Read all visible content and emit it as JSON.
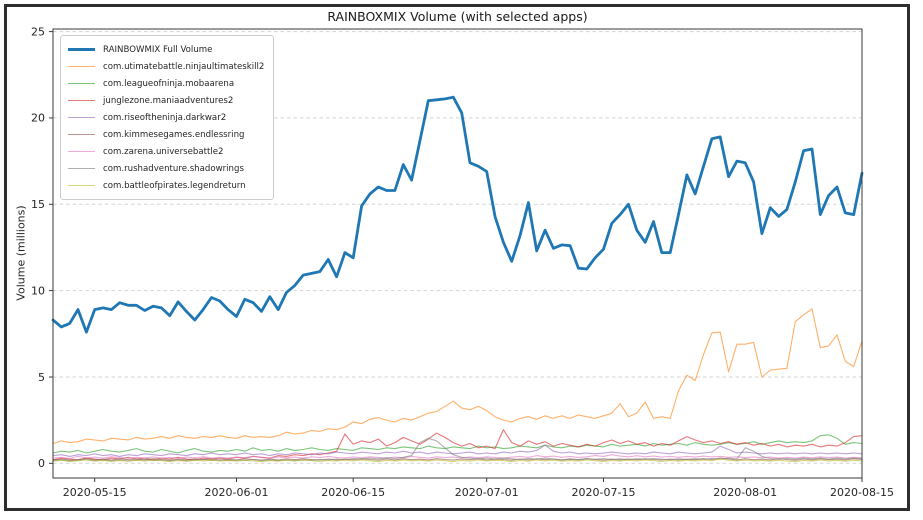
{
  "figure": {
    "border_color": "#2e2e2e",
    "background": "#ffffff"
  },
  "title": "RAINBOXMIX Volume (with selected apps)",
  "y_axis": {
    "label": "Volume (millions)",
    "ticks": [
      0,
      5,
      10,
      15,
      20,
      25
    ]
  },
  "x_axis": {
    "tick_labels": [
      "2020-05-15",
      "2020-06-01",
      "2020-06-15",
      "2020-07-01",
      "2020-07-15",
      "2020-08-01",
      "2020-08-15"
    ],
    "tick_days": [
      5,
      22,
      36,
      52,
      66,
      83,
      97
    ]
  },
  "style": {
    "grid_color": "#d3d3d3",
    "spine_color": "#3a3a3a",
    "tick_text_color": "#262626"
  },
  "chart_data": {
    "type": "line",
    "title": "RAINBOXMIX Volume (with selected apps)",
    "xlabel": "",
    "ylabel": "Volume (millions)",
    "x_start": "2020-05-10",
    "x_end": "2020-08-15",
    "x_unit": "day",
    "n_points": 98,
    "ylim": [
      -0.85,
      25.15
    ],
    "grid": "horizontal-dashed",
    "legend_position": "upper-left",
    "series": [
      {
        "name": "RAINBOWMIX Full Volume",
        "color": "#1f77b4",
        "alpha": 1,
        "width": 2.8,
        "values": [
          8.3,
          7.9,
          8.1,
          8.9,
          7.6,
          8.9,
          9.0,
          8.9,
          9.3,
          9.15,
          9.15,
          8.85,
          9.1,
          9.0,
          8.55,
          9.35,
          8.8,
          8.3,
          8.9,
          9.6,
          9.4,
          8.9,
          8.5,
          9.5,
          9.3,
          8.8,
          9.65,
          8.9,
          9.9,
          10.3,
          10.9,
          11.0,
          11.1,
          11.8,
          10.8,
          12.2,
          11.9,
          14.9,
          15.6,
          16.0,
          15.8,
          15.8,
          17.3,
          16.4,
          18.7,
          21.0,
          21.05,
          21.1,
          21.2,
          20.3,
          17.4,
          17.2,
          16.9,
          14.3,
          12.8,
          11.7,
          13.2,
          15.1,
          12.3,
          13.5,
          12.45,
          12.65,
          12.6,
          11.3,
          11.25,
          11.9,
          12.4,
          13.9,
          14.4,
          15.0,
          13.5,
          12.8,
          14.0,
          12.2,
          12.2,
          14.4,
          16.7,
          15.6,
          17.2,
          18.8,
          18.9,
          16.6,
          17.5,
          17.4,
          16.3,
          13.3,
          14.8,
          14.3,
          14.7,
          16.3,
          18.1,
          18.2,
          14.4,
          15.5,
          16.0,
          14.5,
          14.4,
          16.8
        ]
      },
      {
        "name": "com.utimatebattle.ninjaultimateskill2",
        "color": "#ff7f0e",
        "alpha": 0.62,
        "width": 1.1,
        "values": [
          1.15,
          1.3,
          1.2,
          1.25,
          1.4,
          1.35,
          1.3,
          1.45,
          1.4,
          1.35,
          1.5,
          1.4,
          1.45,
          1.55,
          1.45,
          1.6,
          1.5,
          1.45,
          1.55,
          1.5,
          1.6,
          1.5,
          1.45,
          1.6,
          1.5,
          1.55,
          1.5,
          1.6,
          1.8,
          1.7,
          1.75,
          1.9,
          1.85,
          2.0,
          1.95,
          2.1,
          2.4,
          2.3,
          2.55,
          2.65,
          2.5,
          2.4,
          2.6,
          2.5,
          2.7,
          2.9,
          3.0,
          3.3,
          3.6,
          3.2,
          3.1,
          3.3,
          3.05,
          2.7,
          2.5,
          2.4,
          2.6,
          2.7,
          2.55,
          2.75,
          2.6,
          2.75,
          2.6,
          2.8,
          2.7,
          2.6,
          2.75,
          2.9,
          3.45,
          2.7,
          2.9,
          3.55,
          2.6,
          2.7,
          2.6,
          4.2,
          5.1,
          4.8,
          6.3,
          7.55,
          7.6,
          5.3,
          6.9,
          6.9,
          7.0,
          5.0,
          5.4,
          5.45,
          5.5,
          8.2,
          8.6,
          8.95,
          6.7,
          6.8,
          7.45,
          5.9,
          5.6,
          7.1
        ]
      },
      {
        "name": "com.leagueofninja.mobaarena",
        "color": "#2ca02c",
        "alpha": 0.62,
        "width": 1.1,
        "values": [
          0.6,
          0.7,
          0.65,
          0.75,
          0.6,
          0.7,
          0.8,
          0.7,
          0.65,
          0.75,
          0.85,
          0.7,
          0.65,
          0.8,
          0.7,
          0.6,
          0.75,
          0.85,
          0.7,
          0.65,
          0.75,
          0.7,
          0.8,
          0.7,
          0.9,
          0.75,
          0.8,
          0.7,
          0.85,
          0.75,
          0.8,
          0.9,
          0.8,
          0.75,
          0.85,
          0.8,
          0.75,
          0.9,
          0.85,
          0.8,
          0.9,
          0.85,
          0.95,
          0.9,
          0.85,
          1.0,
          0.9,
          0.85,
          0.95,
          0.9,
          0.85,
          1.0,
          0.9,
          0.95,
          0.85,
          0.9,
          1.0,
          0.95,
          0.9,
          1.05,
          0.95,
          0.9,
          1.0,
          0.95,
          1.05,
          1.0,
          0.95,
          1.1,
          1.0,
          1.05,
          1.1,
          1.0,
          1.15,
          1.05,
          1.1,
          1.15,
          1.05,
          1.2,
          1.1,
          1.05,
          1.1,
          1.2,
          1.1,
          1.15,
          1.25,
          1.1,
          1.2,
          1.3,
          1.2,
          1.25,
          1.2,
          1.3,
          1.6,
          1.65,
          1.45,
          1.1,
          1.2,
          1.15
        ]
      },
      {
        "name": "junglezone.maniaadventures2",
        "color": "#d62728",
        "alpha": 0.62,
        "width": 1.1,
        "values": [
          0.2,
          0.3,
          0.25,
          0.2,
          0.3,
          0.25,
          0.2,
          0.3,
          0.25,
          0.35,
          0.25,
          0.3,
          0.2,
          0.3,
          0.25,
          0.35,
          0.25,
          0.2,
          0.3,
          0.25,
          0.3,
          0.25,
          0.35,
          0.3,
          0.4,
          0.35,
          0.3,
          0.45,
          0.4,
          0.5,
          0.45,
          0.55,
          0.5,
          0.6,
          0.7,
          1.7,
          1.1,
          1.3,
          1.2,
          1.4,
          1.0,
          1.2,
          1.5,
          1.3,
          1.1,
          1.4,
          1.75,
          1.5,
          1.2,
          1.0,
          1.15,
          0.9,
          1.0,
          0.85,
          1.95,
          1.2,
          1.0,
          1.3,
          1.1,
          1.25,
          1.0,
          1.15,
          1.05,
          0.95,
          1.1,
          1.0,
          1.2,
          1.35,
          1.15,
          1.3,
          1.1,
          1.2,
          1.0,
          1.15,
          1.05,
          1.3,
          1.55,
          1.35,
          1.2,
          1.3,
          1.15,
          1.25,
          1.1,
          1.2,
          1.05,
          1.15,
          1.0,
          1.1,
          0.95,
          1.05,
          1.0,
          1.1,
          0.95,
          1.05,
          1.0,
          1.2,
          1.55,
          1.6
        ]
      },
      {
        "name": "com.riseoftheninja.darkwar2",
        "color": "#9467bd",
        "alpha": 0.62,
        "width": 1.1,
        "values": [
          0.45,
          0.5,
          0.4,
          0.5,
          0.45,
          0.55,
          0.45,
          0.5,
          0.4,
          0.5,
          0.45,
          0.55,
          0.5,
          0.45,
          0.55,
          0.5,
          0.45,
          0.55,
          0.5,
          0.6,
          0.5,
          0.55,
          0.5,
          0.6,
          0.5,
          0.55,
          0.45,
          0.55,
          0.5,
          0.6,
          0.55,
          0.5,
          0.6,
          0.55,
          0.65,
          0.6,
          0.55,
          0.65,
          0.6,
          0.55,
          0.65,
          0.6,
          0.7,
          0.6,
          0.65,
          0.55,
          0.65,
          0.6,
          0.55,
          0.6,
          0.65,
          0.55,
          0.6,
          0.55,
          0.65,
          0.6,
          0.7,
          0.65,
          0.75,
          1.05,
          0.7,
          0.6,
          0.65,
          0.55,
          0.6,
          0.55,
          0.6,
          0.65,
          0.6,
          0.55,
          0.6,
          0.55,
          0.65,
          0.6,
          0.55,
          0.65,
          0.6,
          0.55,
          0.6,
          0.65,
          1.0,
          0.8,
          0.6,
          0.65,
          0.6,
          0.55,
          0.6,
          0.55,
          0.6,
          0.55,
          0.6,
          0.55,
          0.6,
          0.55,
          0.6,
          0.55,
          0.6,
          0.55
        ]
      },
      {
        "name": "com.kimmesegames.endlessring",
        "color": "#8c564b",
        "alpha": 0.62,
        "width": 1.1,
        "values": [
          0.2,
          0.25,
          0.18,
          0.22,
          0.28,
          0.2,
          0.24,
          0.19,
          0.26,
          0.21,
          0.25,
          0.2,
          0.27,
          0.22,
          0.18,
          0.24,
          0.2,
          0.26,
          0.21,
          0.25,
          0.19,
          0.23,
          0.2,
          0.26,
          0.22,
          0.18,
          0.24,
          0.2,
          0.25,
          0.21,
          0.26,
          0.22,
          0.19,
          0.25,
          0.2,
          0.24,
          0.21,
          0.27,
          0.22,
          0.18,
          0.25,
          0.2,
          0.26,
          0.21,
          0.24,
          0.2,
          0.27,
          0.22,
          0.19,
          0.25,
          0.21,
          0.26,
          0.2,
          0.24,
          0.22,
          0.18,
          0.25,
          0.2,
          0.26,
          0.21,
          0.25,
          0.19,
          0.23,
          0.2,
          0.26,
          0.22,
          0.18,
          0.24,
          0.2,
          0.25,
          0.21,
          0.26,
          0.22,
          0.19,
          0.25,
          0.2,
          0.24,
          0.21,
          0.27,
          0.22,
          0.3,
          0.25,
          0.2,
          0.26,
          0.21,
          0.24,
          0.2,
          0.27,
          0.22,
          0.18,
          0.25,
          0.2,
          0.26,
          0.21,
          0.24,
          0.2,
          0.27,
          0.22
        ]
      },
      {
        "name": "com.zarena.universebattle2",
        "color": "#e377c2",
        "alpha": 0.62,
        "width": 1.1,
        "values": [
          0.3,
          0.35,
          0.28,
          0.4,
          0.32,
          0.36,
          0.3,
          0.38,
          0.33,
          0.29,
          0.35,
          0.31,
          0.37,
          0.3,
          0.34,
          0.29,
          0.36,
          0.32,
          0.38,
          0.3,
          0.34,
          0.3,
          0.36,
          0.32,
          0.4,
          0.33,
          0.29,
          0.37,
          0.32,
          0.36,
          0.3,
          0.38,
          0.33,
          0.4,
          0.34,
          0.3,
          0.37,
          0.32,
          0.38,
          0.34,
          0.3,
          0.36,
          0.32,
          0.4,
          0.35,
          0.3,
          0.38,
          0.33,
          0.36,
          0.31,
          0.37,
          0.32,
          0.38,
          0.34,
          0.3,
          0.36,
          0.4,
          0.34,
          0.45,
          0.38,
          0.42,
          0.35,
          0.4,
          0.34,
          0.38,
          0.45,
          0.4,
          0.5,
          0.42,
          0.38,
          0.44,
          0.38,
          0.42,
          0.36,
          0.4,
          0.35,
          0.4,
          0.36,
          0.42,
          0.37,
          0.4,
          0.35,
          0.38,
          0.33,
          0.37,
          0.32,
          0.36,
          0.31,
          0.35,
          0.3,
          0.36,
          0.32,
          0.38,
          0.33,
          0.36,
          0.31,
          0.35,
          0.32
        ]
      },
      {
        "name": "com.rushadventure.shadowrings",
        "color": "#7f7f7f",
        "alpha": 0.62,
        "width": 1.1,
        "values": [
          0.15,
          0.2,
          0.14,
          0.18,
          0.22,
          0.16,
          0.2,
          0.15,
          0.19,
          0.14,
          0.18,
          0.22,
          0.16,
          0.2,
          0.15,
          0.19,
          0.14,
          0.18,
          0.22,
          0.16,
          0.2,
          0.15,
          0.19,
          0.16,
          0.22,
          0.17,
          0.2,
          0.15,
          0.19,
          0.16,
          0.2,
          0.17,
          0.22,
          0.18,
          0.25,
          0.2,
          0.28,
          0.24,
          0.3,
          0.26,
          0.32,
          0.28,
          0.35,
          0.45,
          1.2,
          1.45,
          1.3,
          0.9,
          0.5,
          0.35,
          0.3,
          0.26,
          0.3,
          0.25,
          0.3,
          0.26,
          0.22,
          0.28,
          0.24,
          0.3,
          0.25,
          0.2,
          0.26,
          0.22,
          0.28,
          0.23,
          0.27,
          0.22,
          0.26,
          0.21,
          0.27,
          0.23,
          0.28,
          0.24,
          0.2,
          0.26,
          0.22,
          0.27,
          0.23,
          0.28,
          0.24,
          0.3,
          0.25,
          0.9,
          0.7,
          0.4,
          0.28,
          0.24,
          0.28,
          0.24,
          0.3,
          0.26,
          0.3,
          0.25,
          0.3,
          0.26,
          0.3,
          0.27
        ]
      },
      {
        "name": "com.battleofpirates.legendreturn",
        "color": "#bcbd22",
        "alpha": 0.62,
        "width": 1.1,
        "values": [
          0.12,
          0.18,
          0.1,
          0.15,
          0.2,
          0.13,
          0.17,
          0.11,
          0.16,
          0.12,
          0.18,
          0.13,
          0.2,
          0.15,
          0.1,
          0.16,
          0.12,
          0.18,
          0.14,
          0.2,
          0.13,
          0.17,
          0.12,
          0.18,
          0.14,
          0.1,
          0.16,
          0.12,
          0.18,
          0.13,
          0.2,
          0.15,
          0.11,
          0.17,
          0.13,
          0.19,
          0.14,
          0.2,
          0.15,
          0.1,
          0.17,
          0.13,
          0.19,
          0.14,
          0.18,
          0.13,
          0.2,
          0.15,
          0.11,
          0.17,
          0.13,
          0.19,
          0.14,
          0.18,
          0.15,
          0.1,
          0.17,
          0.12,
          0.19,
          0.14,
          0.18,
          0.12,
          0.16,
          0.13,
          0.19,
          0.15,
          0.1,
          0.17,
          0.13,
          0.18,
          0.14,
          0.2,
          0.15,
          0.11,
          0.17,
          0.12,
          0.18,
          0.14,
          0.2,
          0.15,
          0.25,
          0.18,
          0.13,
          0.19,
          0.14,
          0.17,
          0.12,
          0.18,
          0.13,
          0.1,
          0.17,
          0.13,
          0.19,
          0.14,
          0.17,
          0.12,
          0.18,
          0.14
        ]
      }
    ]
  }
}
